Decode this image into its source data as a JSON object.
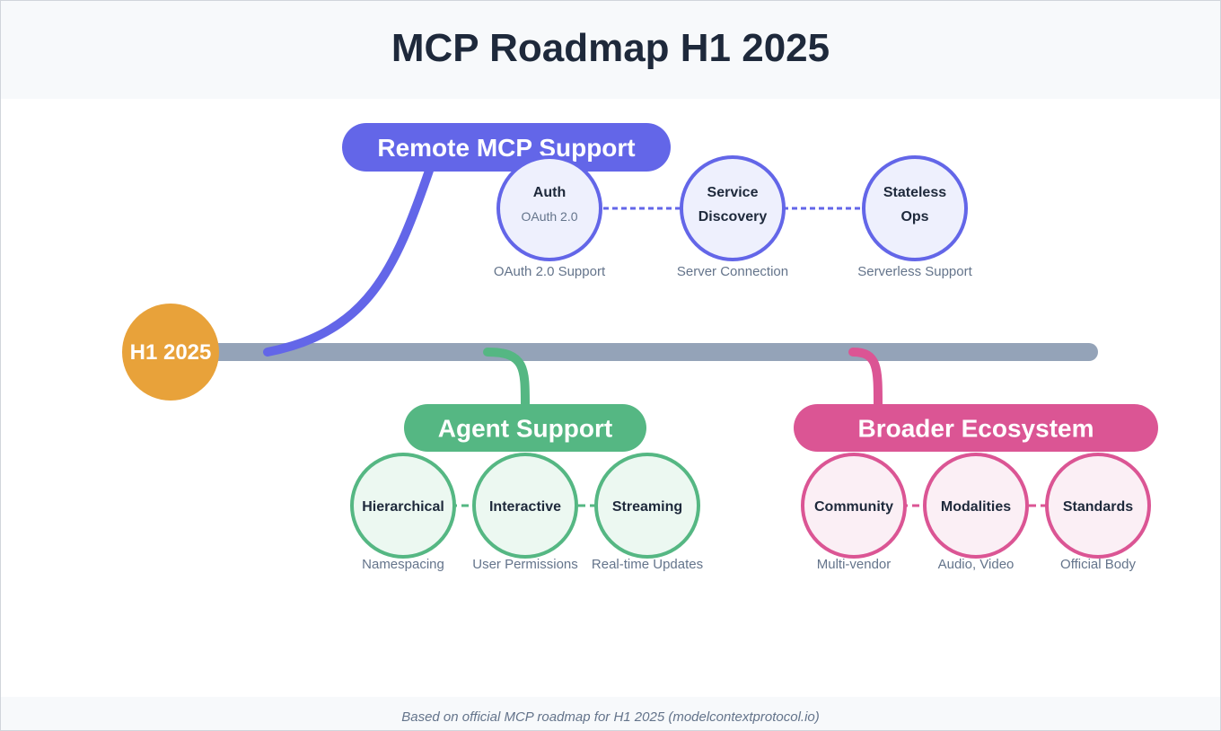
{
  "title": "MCP Roadmap H1 2025",
  "footer": "Based on official MCP roadmap for H1 2025 (modelcontextprotocol.io)",
  "start": {
    "label": "H1 2025",
    "color": "#e8a23a"
  },
  "timeline_color": "#94a3b8",
  "groups": [
    {
      "label": "Remote MCP Support",
      "color": "#6366e8",
      "node_fill": "#eef0fd",
      "nodes": [
        {
          "title": [
            "Auth"
          ],
          "subtitle": "OAuth 2.0",
          "caption": "OAuth 2.0 Support"
        },
        {
          "title": [
            "Service",
            "Discovery"
          ],
          "caption": "Server Connection"
        },
        {
          "title": [
            "Stateless",
            "Ops"
          ],
          "caption": "Serverless Support"
        }
      ]
    },
    {
      "label": "Agent Support",
      "color": "#55b783",
      "node_fill": "#ecf8f1",
      "nodes": [
        {
          "title": [
            "Hierarchical"
          ],
          "caption": "Namespacing"
        },
        {
          "title": [
            "Interactive"
          ],
          "caption": "User Permissions"
        },
        {
          "title": [
            "Streaming"
          ],
          "caption": "Real-time Updates"
        }
      ]
    },
    {
      "label": "Broader Ecosystem",
      "color": "#db5594",
      "node_fill": "#fbeff5",
      "nodes": [
        {
          "title": [
            "Community"
          ],
          "caption": "Multi-vendor"
        },
        {
          "title": [
            "Modalities"
          ],
          "caption": "Audio, Video"
        },
        {
          "title": [
            "Standards"
          ],
          "caption": "Official Body"
        }
      ]
    }
  ]
}
